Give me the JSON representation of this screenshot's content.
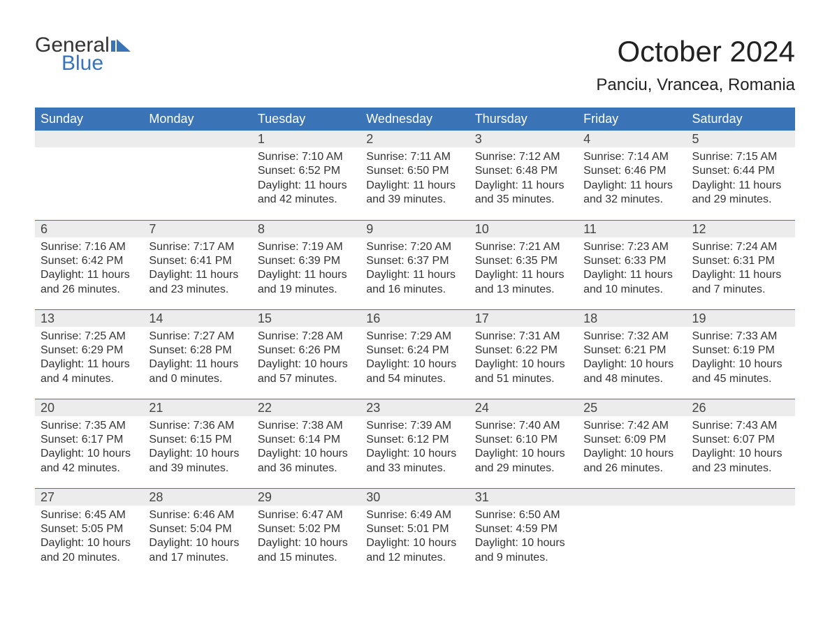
{
  "logo": {
    "text_general": "General",
    "text_blue": "Blue",
    "shape_color": "#3b74b6"
  },
  "title": {
    "month": "October 2024",
    "location": "Panciu, Vrancea, Romania"
  },
  "calendar": {
    "day_headers": [
      "Sunday",
      "Monday",
      "Tuesday",
      "Wednesday",
      "Thursday",
      "Friday",
      "Saturday"
    ],
    "header_bg": "#3b74b6",
    "header_fg": "#ffffff",
    "daynum_bg": "#ececec",
    "row_border_color": "#3b74b6",
    "text_color": "#333333",
    "daynum_fontsize": 18,
    "body_fontsize": 16,
    "weeks": [
      [
        {
          "day": "",
          "sunrise": "",
          "sunset": "",
          "daylight": ""
        },
        {
          "day": "",
          "sunrise": "",
          "sunset": "",
          "daylight": ""
        },
        {
          "day": "1",
          "sunrise": "Sunrise: 7:10 AM",
          "sunset": "Sunset: 6:52 PM",
          "daylight": "Daylight: 11 hours and 42 minutes."
        },
        {
          "day": "2",
          "sunrise": "Sunrise: 7:11 AM",
          "sunset": "Sunset: 6:50 PM",
          "daylight": "Daylight: 11 hours and 39 minutes."
        },
        {
          "day": "3",
          "sunrise": "Sunrise: 7:12 AM",
          "sunset": "Sunset: 6:48 PM",
          "daylight": "Daylight: 11 hours and 35 minutes."
        },
        {
          "day": "4",
          "sunrise": "Sunrise: 7:14 AM",
          "sunset": "Sunset: 6:46 PM",
          "daylight": "Daylight: 11 hours and 32 minutes."
        },
        {
          "day": "5",
          "sunrise": "Sunrise: 7:15 AM",
          "sunset": "Sunset: 6:44 PM",
          "daylight": "Daylight: 11 hours and 29 minutes."
        }
      ],
      [
        {
          "day": "6",
          "sunrise": "Sunrise: 7:16 AM",
          "sunset": "Sunset: 6:42 PM",
          "daylight": "Daylight: 11 hours and 26 minutes."
        },
        {
          "day": "7",
          "sunrise": "Sunrise: 7:17 AM",
          "sunset": "Sunset: 6:41 PM",
          "daylight": "Daylight: 11 hours and 23 minutes."
        },
        {
          "day": "8",
          "sunrise": "Sunrise: 7:19 AM",
          "sunset": "Sunset: 6:39 PM",
          "daylight": "Daylight: 11 hours and 19 minutes."
        },
        {
          "day": "9",
          "sunrise": "Sunrise: 7:20 AM",
          "sunset": "Sunset: 6:37 PM",
          "daylight": "Daylight: 11 hours and 16 minutes."
        },
        {
          "day": "10",
          "sunrise": "Sunrise: 7:21 AM",
          "sunset": "Sunset: 6:35 PM",
          "daylight": "Daylight: 11 hours and 13 minutes."
        },
        {
          "day": "11",
          "sunrise": "Sunrise: 7:23 AM",
          "sunset": "Sunset: 6:33 PM",
          "daylight": "Daylight: 11 hours and 10 minutes."
        },
        {
          "day": "12",
          "sunrise": "Sunrise: 7:24 AM",
          "sunset": "Sunset: 6:31 PM",
          "daylight": "Daylight: 11 hours and 7 minutes."
        }
      ],
      [
        {
          "day": "13",
          "sunrise": "Sunrise: 7:25 AM",
          "sunset": "Sunset: 6:29 PM",
          "daylight": "Daylight: 11 hours and 4 minutes."
        },
        {
          "day": "14",
          "sunrise": "Sunrise: 7:27 AM",
          "sunset": "Sunset: 6:28 PM",
          "daylight": "Daylight: 11 hours and 0 minutes."
        },
        {
          "day": "15",
          "sunrise": "Sunrise: 7:28 AM",
          "sunset": "Sunset: 6:26 PM",
          "daylight": "Daylight: 10 hours and 57 minutes."
        },
        {
          "day": "16",
          "sunrise": "Sunrise: 7:29 AM",
          "sunset": "Sunset: 6:24 PM",
          "daylight": "Daylight: 10 hours and 54 minutes."
        },
        {
          "day": "17",
          "sunrise": "Sunrise: 7:31 AM",
          "sunset": "Sunset: 6:22 PM",
          "daylight": "Daylight: 10 hours and 51 minutes."
        },
        {
          "day": "18",
          "sunrise": "Sunrise: 7:32 AM",
          "sunset": "Sunset: 6:21 PM",
          "daylight": "Daylight: 10 hours and 48 minutes."
        },
        {
          "day": "19",
          "sunrise": "Sunrise: 7:33 AM",
          "sunset": "Sunset: 6:19 PM",
          "daylight": "Daylight: 10 hours and 45 minutes."
        }
      ],
      [
        {
          "day": "20",
          "sunrise": "Sunrise: 7:35 AM",
          "sunset": "Sunset: 6:17 PM",
          "daylight": "Daylight: 10 hours and 42 minutes."
        },
        {
          "day": "21",
          "sunrise": "Sunrise: 7:36 AM",
          "sunset": "Sunset: 6:15 PM",
          "daylight": "Daylight: 10 hours and 39 minutes."
        },
        {
          "day": "22",
          "sunrise": "Sunrise: 7:38 AM",
          "sunset": "Sunset: 6:14 PM",
          "daylight": "Daylight: 10 hours and 36 minutes."
        },
        {
          "day": "23",
          "sunrise": "Sunrise: 7:39 AM",
          "sunset": "Sunset: 6:12 PM",
          "daylight": "Daylight: 10 hours and 33 minutes."
        },
        {
          "day": "24",
          "sunrise": "Sunrise: 7:40 AM",
          "sunset": "Sunset: 6:10 PM",
          "daylight": "Daylight: 10 hours and 29 minutes."
        },
        {
          "day": "25",
          "sunrise": "Sunrise: 7:42 AM",
          "sunset": "Sunset: 6:09 PM",
          "daylight": "Daylight: 10 hours and 26 minutes."
        },
        {
          "day": "26",
          "sunrise": "Sunrise: 7:43 AM",
          "sunset": "Sunset: 6:07 PM",
          "daylight": "Daylight: 10 hours and 23 minutes."
        }
      ],
      [
        {
          "day": "27",
          "sunrise": "Sunrise: 6:45 AM",
          "sunset": "Sunset: 5:05 PM",
          "daylight": "Daylight: 10 hours and 20 minutes."
        },
        {
          "day": "28",
          "sunrise": "Sunrise: 6:46 AM",
          "sunset": "Sunset: 5:04 PM",
          "daylight": "Daylight: 10 hours and 17 minutes."
        },
        {
          "day": "29",
          "sunrise": "Sunrise: 6:47 AM",
          "sunset": "Sunset: 5:02 PM",
          "daylight": "Daylight: 10 hours and 15 minutes."
        },
        {
          "day": "30",
          "sunrise": "Sunrise: 6:49 AM",
          "sunset": "Sunset: 5:01 PM",
          "daylight": "Daylight: 10 hours and 12 minutes."
        },
        {
          "day": "31",
          "sunrise": "Sunrise: 6:50 AM",
          "sunset": "Sunset: 4:59 PM",
          "daylight": "Daylight: 10 hours and 9 minutes."
        },
        {
          "day": "",
          "sunrise": "",
          "sunset": "",
          "daylight": ""
        },
        {
          "day": "",
          "sunrise": "",
          "sunset": "",
          "daylight": ""
        }
      ]
    ]
  }
}
